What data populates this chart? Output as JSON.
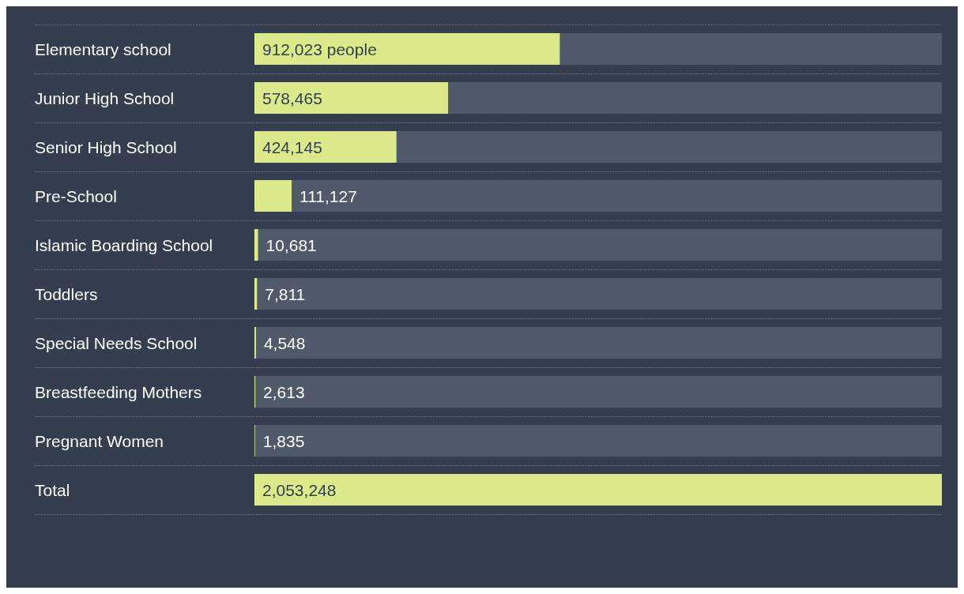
{
  "chart_data": {
    "type": "bar",
    "orientation": "horizontal",
    "categories": [
      "Elementary school",
      "Junior High School",
      "Senior High School",
      "Pre-School",
      "Islamic Boarding School",
      "Toddlers",
      "Special Needs School",
      "Breastfeeding Mothers",
      "Pregnant Women",
      "Total"
    ],
    "values": [
      912023,
      578465,
      424145,
      111127,
      10681,
      7811,
      4548,
      2613,
      1835,
      2053248
    ],
    "value_labels": [
      "912,023 people",
      "578,465",
      "424,145",
      "111,127",
      "10,681",
      "7,811",
      "4,548",
      "2,613",
      "1,835",
      "2,053,248"
    ],
    "color": "#dbe98a",
    "xlim": [
      0,
      2053248
    ],
    "grid": "y"
  }
}
